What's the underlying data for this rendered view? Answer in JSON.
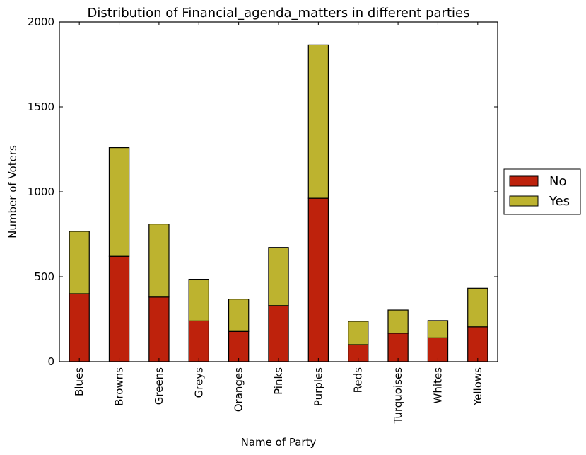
{
  "chart_data": {
    "type": "bar",
    "stacked": true,
    "title": "Distribution of Financial_agenda_matters in different parties",
    "xlabel": "Name of Party",
    "ylabel": "Number of Voters",
    "ylim": [
      0,
      2000
    ],
    "yticks": [
      0,
      500,
      1000,
      1500,
      2000
    ],
    "categories": [
      "Blues",
      "Browns",
      "Greens",
      "Greys",
      "Oranges",
      "Pinks",
      "Purples",
      "Reds",
      "Turquoises",
      "Whites",
      "Yellows"
    ],
    "series": [
      {
        "name": "No",
        "color": "#be220c",
        "values": [
          400,
          620,
          380,
          240,
          178,
          330,
          962,
          100,
          167,
          140,
          205
        ]
      },
      {
        "name": "Yes",
        "color": "#bdb32f",
        "values": [
          367,
          640,
          430,
          245,
          190,
          342,
          903,
          138,
          137,
          102,
          227
        ]
      }
    ],
    "legend_position": "right",
    "grid": false
  }
}
